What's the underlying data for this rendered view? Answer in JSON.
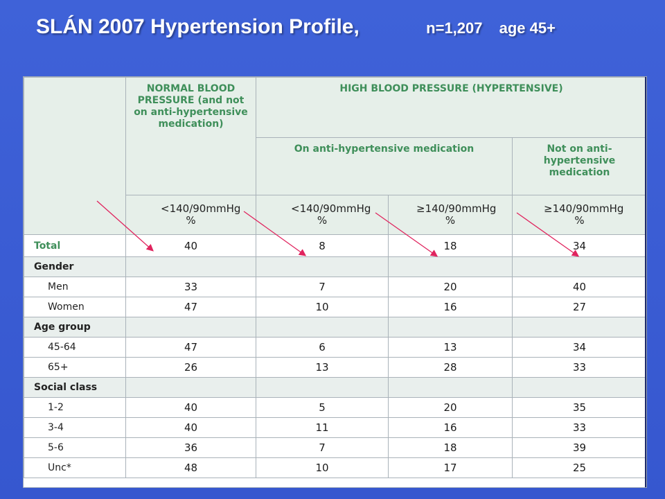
{
  "slide": {
    "title": "SLÁN 2007 Hypertension Profile,",
    "n_label": "n=1,207",
    "age_label": "age 45+"
  },
  "table": {
    "headers": {
      "normal": "NORMAL BLOOD PRESSURE (and not on anti-hypertensive medication)",
      "high": "HIGH BLOOD PRESSURE (HYPERTENSIVE)",
      "on_med": "On anti-hypertensive medication",
      "not_on_med": "Not on anti-hypertensive medication"
    },
    "units": {
      "normal": "<140/90mmHg %",
      "on_med_controlled": "<140/90mmHg %",
      "on_med_uncontrolled": "≥140/90mmHg %",
      "not_on_med": "≥140/90mmHg %"
    },
    "rows": [
      {
        "type": "total",
        "label": "Total",
        "values": [
          "40",
          "8",
          "18",
          "34"
        ]
      },
      {
        "type": "section",
        "label": "Gender"
      },
      {
        "type": "data",
        "label": "Men",
        "values": [
          "33",
          "7",
          "20",
          "40"
        ]
      },
      {
        "type": "data",
        "label": "Women",
        "values": [
          "47",
          "10",
          "16",
          "27"
        ]
      },
      {
        "type": "section",
        "label": "Age group"
      },
      {
        "type": "data",
        "label": "45-64",
        "values": [
          "47",
          "6",
          "13",
          "34"
        ]
      },
      {
        "type": "data",
        "label": "65+",
        "values": [
          "26",
          "13",
          "28",
          "33"
        ]
      },
      {
        "type": "section",
        "label": "Social class"
      },
      {
        "type": "data",
        "label": "1-2",
        "values": [
          "40",
          "5",
          "20",
          "35"
        ]
      },
      {
        "type": "data",
        "label": "3-4",
        "values": [
          "40",
          "11",
          "16",
          "33"
        ]
      },
      {
        "type": "data",
        "label": "5-6",
        "values": [
          "36",
          "7",
          "18",
          "39"
        ]
      },
      {
        "type": "data",
        "label": "Unc*",
        "values": [
          "48",
          "10",
          "17",
          "25"
        ]
      }
    ]
  },
  "colors": {
    "background": "#3f62d8",
    "header_text": "#3f8f5a",
    "arrow": "#e0245e"
  }
}
